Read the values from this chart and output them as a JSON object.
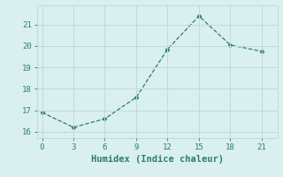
{
  "x": [
    0,
    3,
    6,
    9,
    12,
    15,
    18,
    21
  ],
  "y": [
    16.9,
    16.2,
    16.6,
    17.6,
    19.85,
    21.4,
    20.05,
    19.75
  ],
  "line_color": "#2e7d6e",
  "marker": "D",
  "marker_size": 2.5,
  "bg_color": "#d9f0ee",
  "grid_color": "#c0dbd8",
  "xlabel": "Humidex (Indice chaleur)",
  "xlim": [
    -0.5,
    22.5
  ],
  "ylim": [
    15.7,
    21.9
  ],
  "xticks": [
    0,
    3,
    6,
    9,
    12,
    15,
    18,
    21
  ],
  "yticks": [
    16,
    17,
    18,
    19,
    20,
    21
  ],
  "tick_fontsize": 6.5,
  "xlabel_fontsize": 7.5,
  "linewidth": 0.9
}
